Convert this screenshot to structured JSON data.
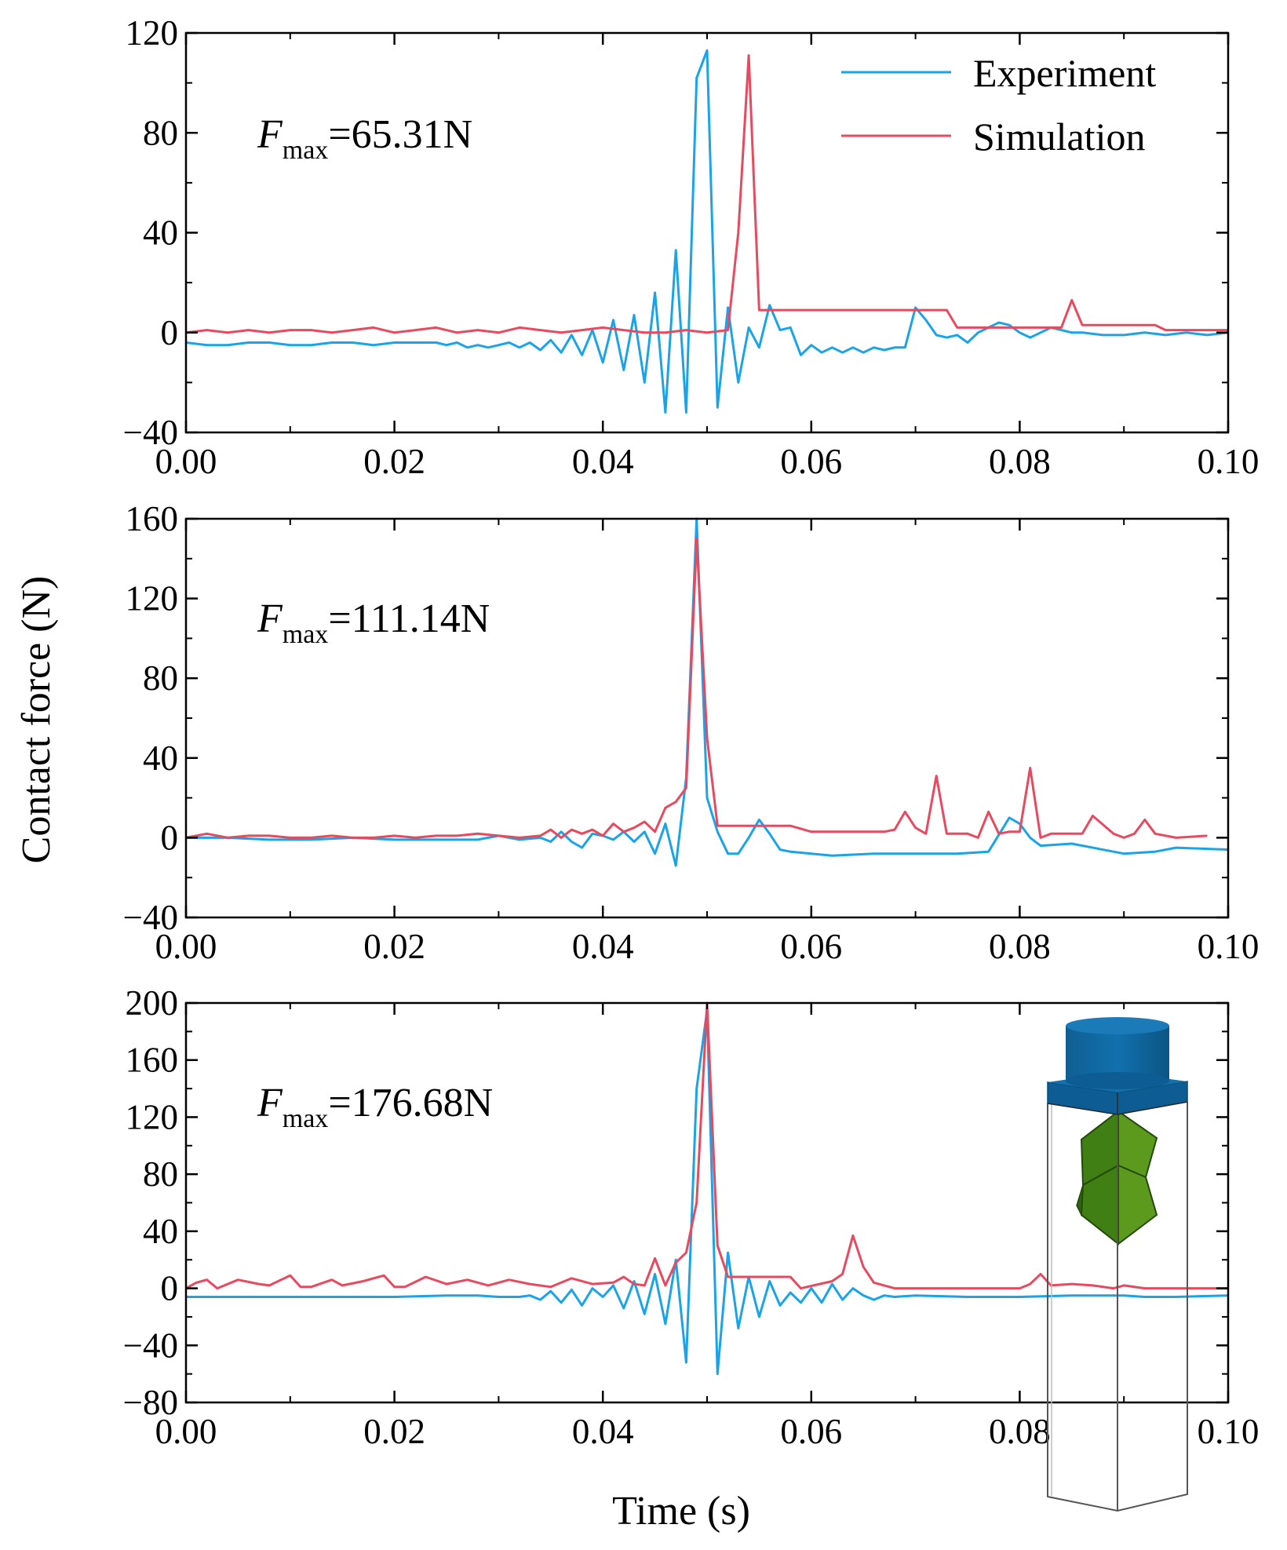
{
  "figure": {
    "xlabel": "Time (s)",
    "ylabel": "Contact force (N)",
    "legend": [
      {
        "label": "Experiment",
        "color": "#1aa3e8"
      },
      {
        "label": "Simulation",
        "color": "#e8495e"
      }
    ]
  },
  "chart_data": [
    {
      "type": "line",
      "annotation": {
        "prefix": "F",
        "sub": "max",
        "value": "=65.31N"
      },
      "xlim": [
        0,
        0.1
      ],
      "ylim": [
        -40,
        120
      ],
      "xticks": [
        "0.00",
        "0.02",
        "0.04",
        "0.06",
        "0.08",
        "0.10"
      ],
      "yticks": [
        "-40",
        "0",
        "40",
        "80",
        "120"
      ],
      "series": [
        {
          "name": "Experiment",
          "x": [
            0,
            0.002,
            0.004,
            0.006,
            0.008,
            0.01,
            0.012,
            0.014,
            0.016,
            0.018,
            0.02,
            0.022,
            0.024,
            0.025,
            0.026,
            0.027,
            0.028,
            0.029,
            0.03,
            0.031,
            0.032,
            0.033,
            0.034,
            0.035,
            0.036,
            0.037,
            0.038,
            0.039,
            0.04,
            0.041,
            0.042,
            0.043,
            0.044,
            0.045,
            0.046,
            0.047,
            0.048,
            0.049,
            0.05,
            0.051,
            0.052,
            0.053,
            0.054,
            0.055,
            0.056,
            0.057,
            0.058,
            0.059,
            0.06,
            0.061,
            0.062,
            0.063,
            0.064,
            0.065,
            0.066,
            0.067,
            0.068,
            0.069,
            0.07,
            0.071,
            0.072,
            0.073,
            0.074,
            0.075,
            0.076,
            0.077,
            0.078,
            0.079,
            0.08,
            0.081,
            0.082,
            0.083,
            0.084,
            0.085,
            0.086,
            0.088,
            0.09,
            0.092,
            0.094,
            0.096,
            0.098,
            0.1
          ],
          "y": [
            -4,
            -5,
            -5,
            -4,
            -4,
            -5,
            -5,
            -4,
            -4,
            -5,
            -4,
            -4,
            -4,
            -5,
            -4,
            -6,
            -5,
            -6,
            -5,
            -4,
            -6,
            -4,
            -7,
            -3,
            -8,
            -1,
            -9,
            1,
            -12,
            5,
            -15,
            7,
            -20,
            16,
            -32,
            33,
            -32,
            102,
            113,
            -30,
            10,
            -20,
            2,
            -6,
            11,
            1,
            2,
            -9,
            -5,
            -8,
            -6,
            -8,
            -6,
            -8,
            -6,
            -7,
            -6,
            -6,
            10,
            5,
            -1,
            -2,
            -1,
            -4,
            0,
            2,
            4,
            3,
            0,
            -2,
            0,
            2,
            1,
            0,
            0,
            -1,
            -1,
            0,
            -1,
            0,
            -1,
            0
          ]
        },
        {
          "name": "Simulation",
          "x": [
            0,
            0.002,
            0.004,
            0.006,
            0.008,
            0.01,
            0.012,
            0.014,
            0.016,
            0.018,
            0.02,
            0.022,
            0.024,
            0.026,
            0.028,
            0.03,
            0.032,
            0.034,
            0.036,
            0.038,
            0.04,
            0.042,
            0.044,
            0.046,
            0.048,
            0.05,
            0.052,
            0.053,
            0.054,
            0.055,
            0.06,
            0.065,
            0.07,
            0.073,
            0.074,
            0.08,
            0.084,
            0.085,
            0.086,
            0.09,
            0.093,
            0.094,
            0.1
          ],
          "y": [
            0,
            1,
            0,
            1,
            0,
            1,
            1,
            0,
            1,
            2,
            0,
            1,
            2,
            0,
            1,
            0,
            2,
            1,
            0,
            1,
            2,
            1,
            0,
            0,
            1,
            0,
            1,
            40,
            111,
            9,
            9,
            9,
            9,
            9,
            2,
            2,
            2,
            13,
            3,
            3,
            3,
            1,
            1
          ]
        }
      ]
    },
    {
      "type": "line",
      "annotation": {
        "prefix": "F",
        "sub": "max",
        "value": "=111.14N"
      },
      "xlim": [
        0,
        0.1
      ],
      "ylim": [
        -40,
        160
      ],
      "xticks": [
        "0.00",
        "0.02",
        "0.04",
        "0.06",
        "0.08",
        "0.10"
      ],
      "yticks": [
        "-40",
        "0",
        "40",
        "80",
        "120",
        "160"
      ],
      "series": [
        {
          "name": "Experiment",
          "x": [
            0,
            0.004,
            0.008,
            0.012,
            0.016,
            0.02,
            0.024,
            0.028,
            0.03,
            0.032,
            0.034,
            0.035,
            0.036,
            0.037,
            0.038,
            0.039,
            0.04,
            0.041,
            0.042,
            0.043,
            0.044,
            0.045,
            0.046,
            0.047,
            0.048,
            0.049,
            0.05,
            0.051,
            0.052,
            0.053,
            0.054,
            0.055,
            0.056,
            0.057,
            0.058,
            0.06,
            0.062,
            0.066,
            0.07,
            0.074,
            0.077,
            0.079,
            0.08,
            0.081,
            0.082,
            0.085,
            0.09,
            0.093,
            0.095,
            0.1
          ],
          "y": [
            0,
            0,
            -1,
            -1,
            0,
            -1,
            -1,
            -1,
            1,
            -1,
            0,
            -2,
            3,
            -2,
            -5,
            2,
            1,
            -1,
            3,
            -2,
            3,
            -8,
            7,
            -14,
            30,
            160,
            20,
            3,
            -8,
            -8,
            0,
            9,
            2,
            -6,
            -7,
            -8,
            -9,
            -8,
            -8,
            -8,
            -7,
            10,
            7,
            0,
            -4,
            -3,
            -8,
            -7,
            -5,
            -6
          ]
        },
        {
          "name": "Simulation",
          "x": [
            0,
            0.002,
            0.004,
            0.006,
            0.008,
            0.01,
            0.012,
            0.014,
            0.016,
            0.018,
            0.02,
            0.022,
            0.024,
            0.026,
            0.028,
            0.03,
            0.032,
            0.034,
            0.035,
            0.036,
            0.037,
            0.038,
            0.039,
            0.04,
            0.041,
            0.042,
            0.043,
            0.044,
            0.045,
            0.046,
            0.047,
            0.048,
            0.049,
            0.05,
            0.051,
            0.055,
            0.058,
            0.06,
            0.065,
            0.067,
            0.068,
            0.069,
            0.07,
            0.071,
            0.072,
            0.073,
            0.075,
            0.076,
            0.077,
            0.078,
            0.079,
            0.08,
            0.081,
            0.082,
            0.083,
            0.086,
            0.087,
            0.089,
            0.09,
            0.091,
            0.092,
            0.093,
            0.095,
            0.098
          ],
          "y": [
            0,
            2,
            0,
            1,
            1,
            0,
            0,
            1,
            0,
            0,
            1,
            0,
            1,
            1,
            2,
            1,
            0,
            1,
            4,
            0,
            4,
            2,
            4,
            1,
            7,
            3,
            5,
            8,
            3,
            15,
            18,
            25,
            150,
            50,
            6,
            6,
            6,
            3,
            3,
            3,
            4,
            13,
            5,
            2,
            31,
            2,
            2,
            0,
            13,
            2,
            3,
            3,
            35,
            0,
            2,
            2,
            11,
            2,
            0,
            2,
            9,
            2,
            0,
            1
          ]
        }
      ]
    },
    {
      "type": "line",
      "annotation": {
        "prefix": "F",
        "sub": "max",
        "value": "=176.68N"
      },
      "xlim": [
        0,
        0.1
      ],
      "ylim": [
        -80,
        200
      ],
      "xticks": [
        "0.00",
        "0.02",
        "0.04",
        "0.06",
        "0.08",
        "0.10"
      ],
      "yticks": [
        "-80",
        "-40",
        "0",
        "40",
        "80",
        "120",
        "160",
        "200"
      ],
      "series": [
        {
          "name": "Experiment",
          "x": [
            0,
            0.005,
            0.01,
            0.015,
            0.02,
            0.025,
            0.028,
            0.03,
            0.032,
            0.033,
            0.034,
            0.035,
            0.036,
            0.037,
            0.038,
            0.039,
            0.04,
            0.041,
            0.042,
            0.043,
            0.044,
            0.045,
            0.046,
            0.047,
            0.048,
            0.049,
            0.05,
            0.051,
            0.052,
            0.053,
            0.054,
            0.055,
            0.056,
            0.057,
            0.058,
            0.059,
            0.06,
            0.061,
            0.062,
            0.063,
            0.064,
            0.065,
            0.066,
            0.067,
            0.068,
            0.07,
            0.075,
            0.08,
            0.085,
            0.09,
            0.092,
            0.095,
            0.1
          ],
          "y": [
            -6,
            -6,
            -6,
            -6,
            -6,
            -5,
            -5,
            -6,
            -6,
            -5,
            -8,
            -2,
            -10,
            -1,
            -12,
            0,
            -6,
            2,
            -14,
            5,
            -18,
            10,
            -25,
            20,
            -52,
            140,
            195,
            -60,
            25,
            -28,
            8,
            -20,
            5,
            -12,
            -3,
            -10,
            0,
            -10,
            3,
            -8,
            0,
            -5,
            -8,
            -5,
            -6,
            -5,
            -6,
            -6,
            -5,
            -5,
            -6,
            -6,
            -5
          ]
        },
        {
          "name": "Simulation",
          "x": [
            0,
            0.001,
            0.002,
            0.003,
            0.005,
            0.007,
            0.008,
            0.01,
            0.011,
            0.012,
            0.014,
            0.015,
            0.017,
            0.019,
            0.02,
            0.021,
            0.023,
            0.025,
            0.027,
            0.029,
            0.031,
            0.033,
            0.035,
            0.037,
            0.039,
            0.041,
            0.042,
            0.043,
            0.044,
            0.045,
            0.046,
            0.047,
            0.048,
            0.049,
            0.05,
            0.051,
            0.052,
            0.055,
            0.058,
            0.059,
            0.062,
            0.063,
            0.064,
            0.065,
            0.066,
            0.068,
            0.07,
            0.075,
            0.08,
            0.081,
            0.082,
            0.083,
            0.085,
            0.087,
            0.089,
            0.09,
            0.092,
            0.095,
            0.1
          ],
          "y": [
            0,
            4,
            6,
            0,
            6,
            3,
            2,
            9,
            1,
            1,
            6,
            2,
            5,
            9,
            1,
            1,
            8,
            3,
            6,
            2,
            6,
            3,
            1,
            7,
            3,
            4,
            8,
            3,
            2,
            21,
            2,
            18,
            25,
            60,
            200,
            30,
            8,
            8,
            8,
            0,
            5,
            10,
            37,
            15,
            4,
            0,
            0,
            0,
            0,
            3,
            10,
            2,
            3,
            2,
            0,
            2,
            0,
            0,
            0
          ]
        }
      ]
    }
  ]
}
